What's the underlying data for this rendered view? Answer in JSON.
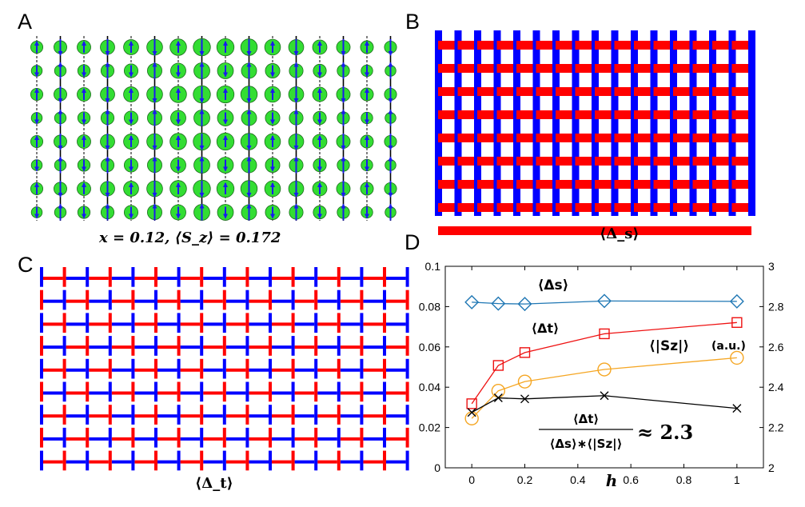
{
  "panels": {
    "a": {
      "label": "A",
      "caption": "x = 0.12, ⟨S_z⟩ = 0.172",
      "colors": {
        "site_fill": "#33dd33",
        "arrow": "#1a1aee",
        "bond": "#000000"
      }
    },
    "b": {
      "label": "B",
      "caption": "⟨Δ_s⟩",
      "colors": {
        "positive": "#ff0000",
        "negative": "#0000ff"
      }
    },
    "c": {
      "label": "C",
      "caption": "⟨Δ_t⟩",
      "colors": {
        "positive": "#ff0000",
        "negative": "#0000ff"
      }
    },
    "d": {
      "label": "D"
    }
  },
  "chart_data": {
    "type": "line",
    "xlabel": "h",
    "xlim": [
      -0.1,
      1.1
    ],
    "xticks": [
      "0",
      "0.2",
      "0.4",
      "0.6",
      "0.8",
      "1"
    ],
    "y_left": {
      "lim": [
        0,
        0.1
      ],
      "ticks": [
        "0",
        "0.02",
        "0.04",
        "0.06",
        "0.08",
        "0.1"
      ]
    },
    "y_right": {
      "lim": [
        2,
        3
      ],
      "ticks": [
        "2",
        "2.2",
        "2.4",
        "2.6",
        "2.8",
        "3"
      ]
    },
    "grid": false,
    "series": [
      {
        "name": "⟨Δs⟩",
        "axis": "left",
        "marker": "diamond",
        "color": "#1f77b4",
        "x": [
          0,
          0.1,
          0.2,
          0.5,
          1
        ],
        "y": [
          0.0822,
          0.0815,
          0.0813,
          0.0828,
          0.0826
        ]
      },
      {
        "name": "⟨Δt⟩",
        "axis": "left",
        "marker": "square",
        "color": "#ee1111",
        "x": [
          0,
          0.1,
          0.2,
          0.5,
          1
        ],
        "y": [
          0.0318,
          0.0508,
          0.0572,
          0.0665,
          0.0721
        ]
      },
      {
        "name": "⟨|Sz|⟩ (a.u.)",
        "axis": "right",
        "marker": "circle",
        "color": "#f5a623",
        "x": [
          0,
          0.1,
          0.2,
          0.5,
          1
        ],
        "y": [
          2.245,
          2.382,
          2.428,
          2.488,
          2.546
        ]
      },
      {
        "name": "ratio",
        "axis": "left",
        "marker": "x",
        "color": "#000000",
        "x": [
          0,
          0.1,
          0.2,
          0.5,
          1
        ],
        "y": [
          0.0275,
          0.0347,
          0.0342,
          0.0358,
          0.0295
        ]
      }
    ],
    "annotations": {
      "ds": "⟨Δs⟩",
      "dt": "⟨Δt⟩",
      "sz": "⟨|Sz|⟩",
      "sz_unit": "(a.u.)",
      "ratio_num": "⟨Δt⟩",
      "ratio_den": "⟨Δs⟩∗⟨|Sz|⟩",
      "ratio_value": "≈ 2.3"
    }
  }
}
